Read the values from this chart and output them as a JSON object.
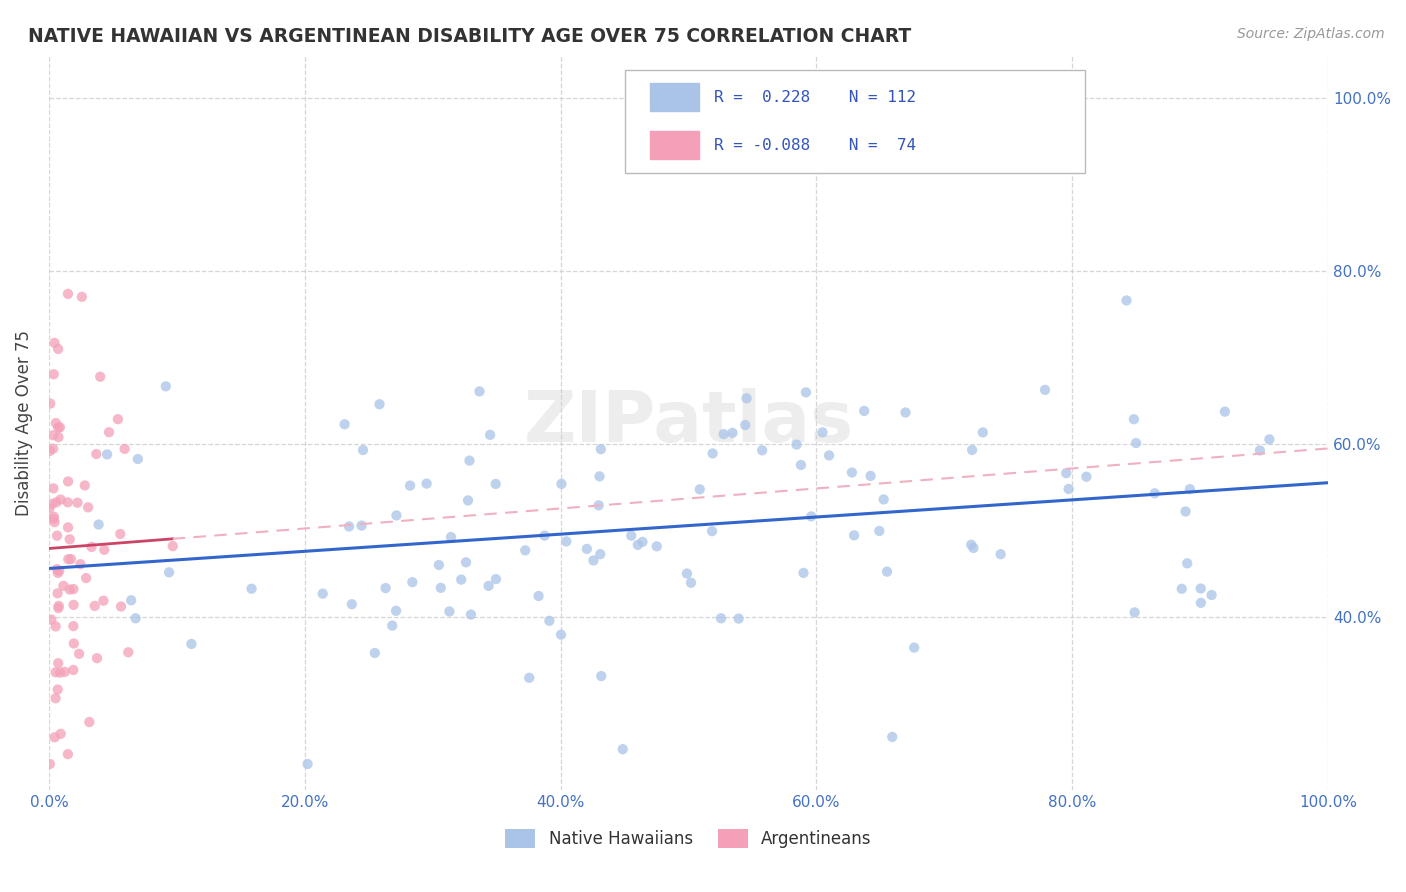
{
  "title": "NATIVE HAWAIIAN VS ARGENTINEAN DISABILITY AGE OVER 75 CORRELATION CHART",
  "source_text": "Source: ZipAtlas.com",
  "ylabel": "Disability Age Over 75",
  "x_min": 0.0,
  "x_max": 1.0,
  "y_min": 0.2,
  "y_max": 1.05,
  "r_hawaiian": 0.228,
  "n_hawaiian": 112,
  "r_argentinean": -0.088,
  "n_argentinean": 74,
  "hawaiian_color": "#aac4e8",
  "argentinean_color": "#f4a0b8",
  "trend_hawaiian_color": "#3366cc",
  "trend_argentinean_solid_color": "#cc4466",
  "trend_argentinean_dash_color": "#f0b0c0",
  "background_color": "#ffffff",
  "watermark_text": "ZIPatlas",
  "y_ticks": [
    0.4,
    0.6,
    0.8,
    1.0
  ],
  "y_tick_labels": [
    "40.0%",
    "60.0%",
    "80.0%",
    "100.0%"
  ],
  "x_ticks": [
    0.0,
    0.2,
    0.4,
    0.6,
    0.8,
    1.0
  ],
  "x_tick_labels": [
    "0.0%",
    "20.0%",
    "40.0%",
    "60.0%",
    "80.0%",
    "100.0%"
  ],
  "seed": 7
}
